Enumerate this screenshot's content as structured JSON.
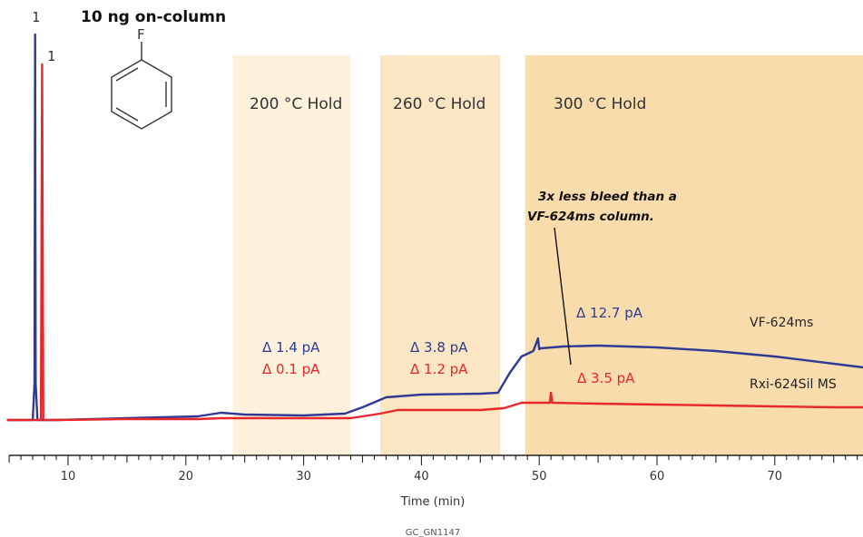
{
  "chart_data": {
    "type": "line",
    "title": "10 ng on-column",
    "xlabel": "Time (min)",
    "ylabel": "",
    "xlim": [
      4.8,
      77.5
    ],
    "xticks": [
      10,
      20,
      30,
      40,
      50,
      60,
      70
    ],
    "footer": "GC_GN1147",
    "structure_atom": "F",
    "peak_labels": [
      {
        "text": "1",
        "series": "VF-624ms",
        "x": 7.2
      },
      {
        "text": "1",
        "series": "Rxi-624Sil MS",
        "x": 7.8
      }
    ],
    "holds": [
      {
        "label": "200 °C Hold",
        "x_start": 24.0,
        "x_end": 34.0,
        "color": "#fdf1dc"
      },
      {
        "label": "260 °C Hold",
        "x_start": 36.5,
        "x_end": 46.7,
        "color": "#fbe6c4"
      },
      {
        "label": "300 °C Hold",
        "x_start": 48.8,
        "x_end": 77.5,
        "color": "#f9dcac"
      }
    ],
    "series": [
      {
        "name": "VF-624ms",
        "color": "#2e3a94",
        "deltas": [
          "Δ 1.4 pA",
          "Δ 3.8 pA",
          "Δ 12.7 pA"
        ],
        "x": [
          4.8,
          7.0,
          7.15,
          7.2,
          7.25,
          7.4,
          9.0,
          15.0,
          21.0,
          23.0,
          25.0,
          30.0,
          33.5,
          35.0,
          37.0,
          40.0,
          45.0,
          46.5,
          47.5,
          48.5,
          49.5,
          49.9,
          50.0,
          50.1,
          52.0,
          55.0,
          60.0,
          65.0,
          70.0,
          75.0,
          77.5
        ],
        "y": [
          0,
          0,
          40,
          425,
          40,
          0,
          0,
          2,
          4,
          8,
          6,
          5,
          7,
          14,
          25,
          28,
          29,
          30,
          52,
          70,
          76,
          90,
          78,
          79,
          81,
          82,
          80,
          76,
          70,
          62,
          58
        ]
      },
      {
        "name": "Rxi-624Sil MS",
        "color": "#e8272b",
        "deltas": [
          "Δ 0.1 pA",
          "Δ 1.2 pA",
          "Δ 3.5 pA"
        ],
        "x": [
          4.8,
          7.7,
          7.8,
          7.9,
          9.0,
          15.0,
          21.0,
          23.0,
          30.0,
          34.0,
          36.5,
          38.0,
          45.0,
          47.0,
          48.5,
          49.5,
          50.9,
          51.0,
          51.1,
          55.0,
          60.0,
          65.0,
          70.0,
          75.0,
          77.5
        ],
        "y": [
          0,
          0,
          392,
          0,
          0,
          1,
          1,
          2,
          2,
          2,
          7,
          11,
          11,
          13,
          19,
          19,
          19,
          30,
          19,
          18,
          17,
          16,
          15,
          14,
          14
        ]
      }
    ],
    "annotation": {
      "lines": [
        "3x less bleed than a",
        "VF-624ms column."
      ]
    }
  }
}
